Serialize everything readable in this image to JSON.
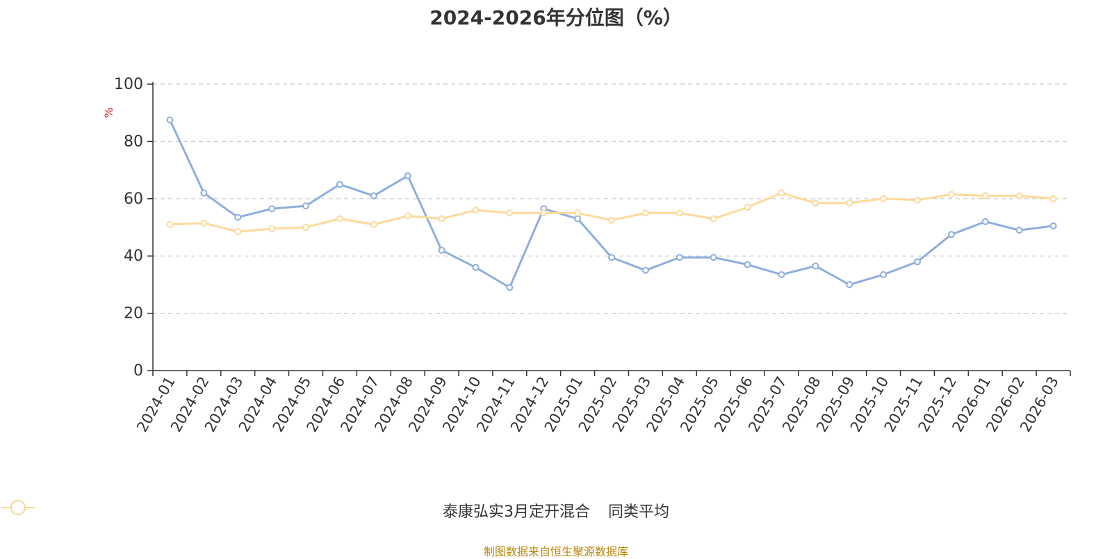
{
  "title": "2024-2026年分位图（%）",
  "source": "制图数据来自恒生聚源数据库",
  "chart_data": {
    "type": "line",
    "title": "2024-2026年分位图（%）",
    "ylabel": "%",
    "ylim": [
      0,
      100
    ],
    "yticks": [
      0,
      20,
      40,
      60,
      80,
      100
    ],
    "grid": true,
    "legend_position": "bottom",
    "categories": [
      "2024-01",
      "2024-02",
      "2024-03",
      "2024-04",
      "2024-05",
      "2024-06",
      "2024-07",
      "2024-08",
      "2024-09",
      "2024-10",
      "2024-11",
      "2024-12",
      "2025-01",
      "2025-02",
      "2025-03",
      "2025-04",
      "2025-05",
      "2025-06",
      "2025-07",
      "2025-08",
      "2025-09",
      "2025-10",
      "2025-11",
      "2025-12",
      "2026-01",
      "2026-02",
      "2026-03"
    ],
    "series": [
      {
        "name": "泰康弘实3月定开混合",
        "color": "#8eaedc",
        "values": [
          87.5,
          62,
          53.5,
          56.5,
          57.5,
          65,
          61,
          68,
          42,
          36,
          29,
          56.5,
          53,
          39.5,
          35,
          39.5,
          39.5,
          37,
          33.5,
          36.5,
          30,
          33.5,
          38,
          47.5,
          52,
          49,
          50.5
        ]
      },
      {
        "name": "同类平均",
        "color": "#fdd99b",
        "values": [
          51,
          51.5,
          48.5,
          49.5,
          50,
          53,
          51,
          54,
          53,
          56,
          55,
          55,
          55,
          52.5,
          55,
          55,
          53,
          57,
          62,
          58.5,
          58.5,
          60,
          59.5,
          61.5,
          61,
          61,
          60
        ]
      }
    ]
  }
}
